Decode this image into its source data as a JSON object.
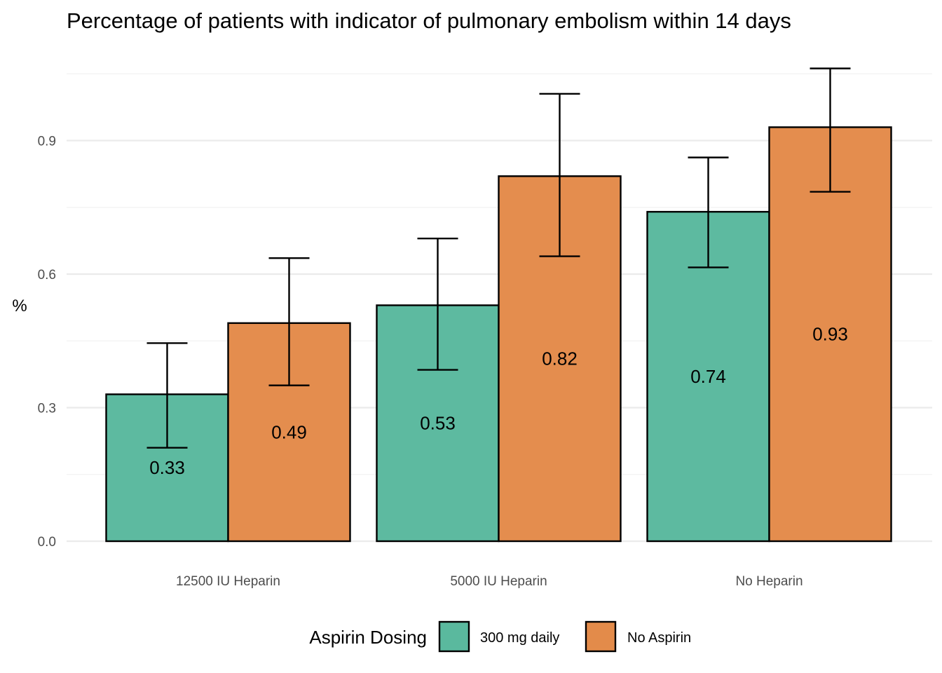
{
  "chart_data": {
    "type": "bar",
    "title": "Percentage of patients with indicator of pulmonary embolism within 14 days",
    "xlabel": "",
    "ylabel": "%",
    "categories": [
      "12500 IU Heparin",
      "5000 IU Heparin",
      "No Heparin"
    ],
    "series": [
      {
        "name": "300 mg daily",
        "color": "#5ab99e",
        "values": [
          0.33,
          0.53,
          0.74
        ],
        "labels": [
          "0.33",
          "0.53",
          "0.74"
        ],
        "error_low": [
          0.21,
          0.385,
          0.615
        ],
        "error_high": [
          0.445,
          0.68,
          0.862
        ]
      },
      {
        "name": "No Aspirin",
        "color": "#e38b4a",
        "values": [
          0.49,
          0.82,
          0.93
        ],
        "labels": [
          "0.49",
          "0.82",
          "0.93"
        ],
        "error_low": [
          0.35,
          0.64,
          0.785
        ],
        "error_high": [
          0.636,
          1.005,
          1.062
        ]
      }
    ],
    "yticks": [
      0.0,
      0.3,
      0.6,
      0.9
    ],
    "ytick_labels": [
      "0.0",
      "0.3",
      "0.6",
      "0.9"
    ],
    "ylim": [
      0,
      1.1
    ],
    "grid": true,
    "legend": {
      "title": "Aspirin Dosing",
      "position": "bottom"
    }
  }
}
